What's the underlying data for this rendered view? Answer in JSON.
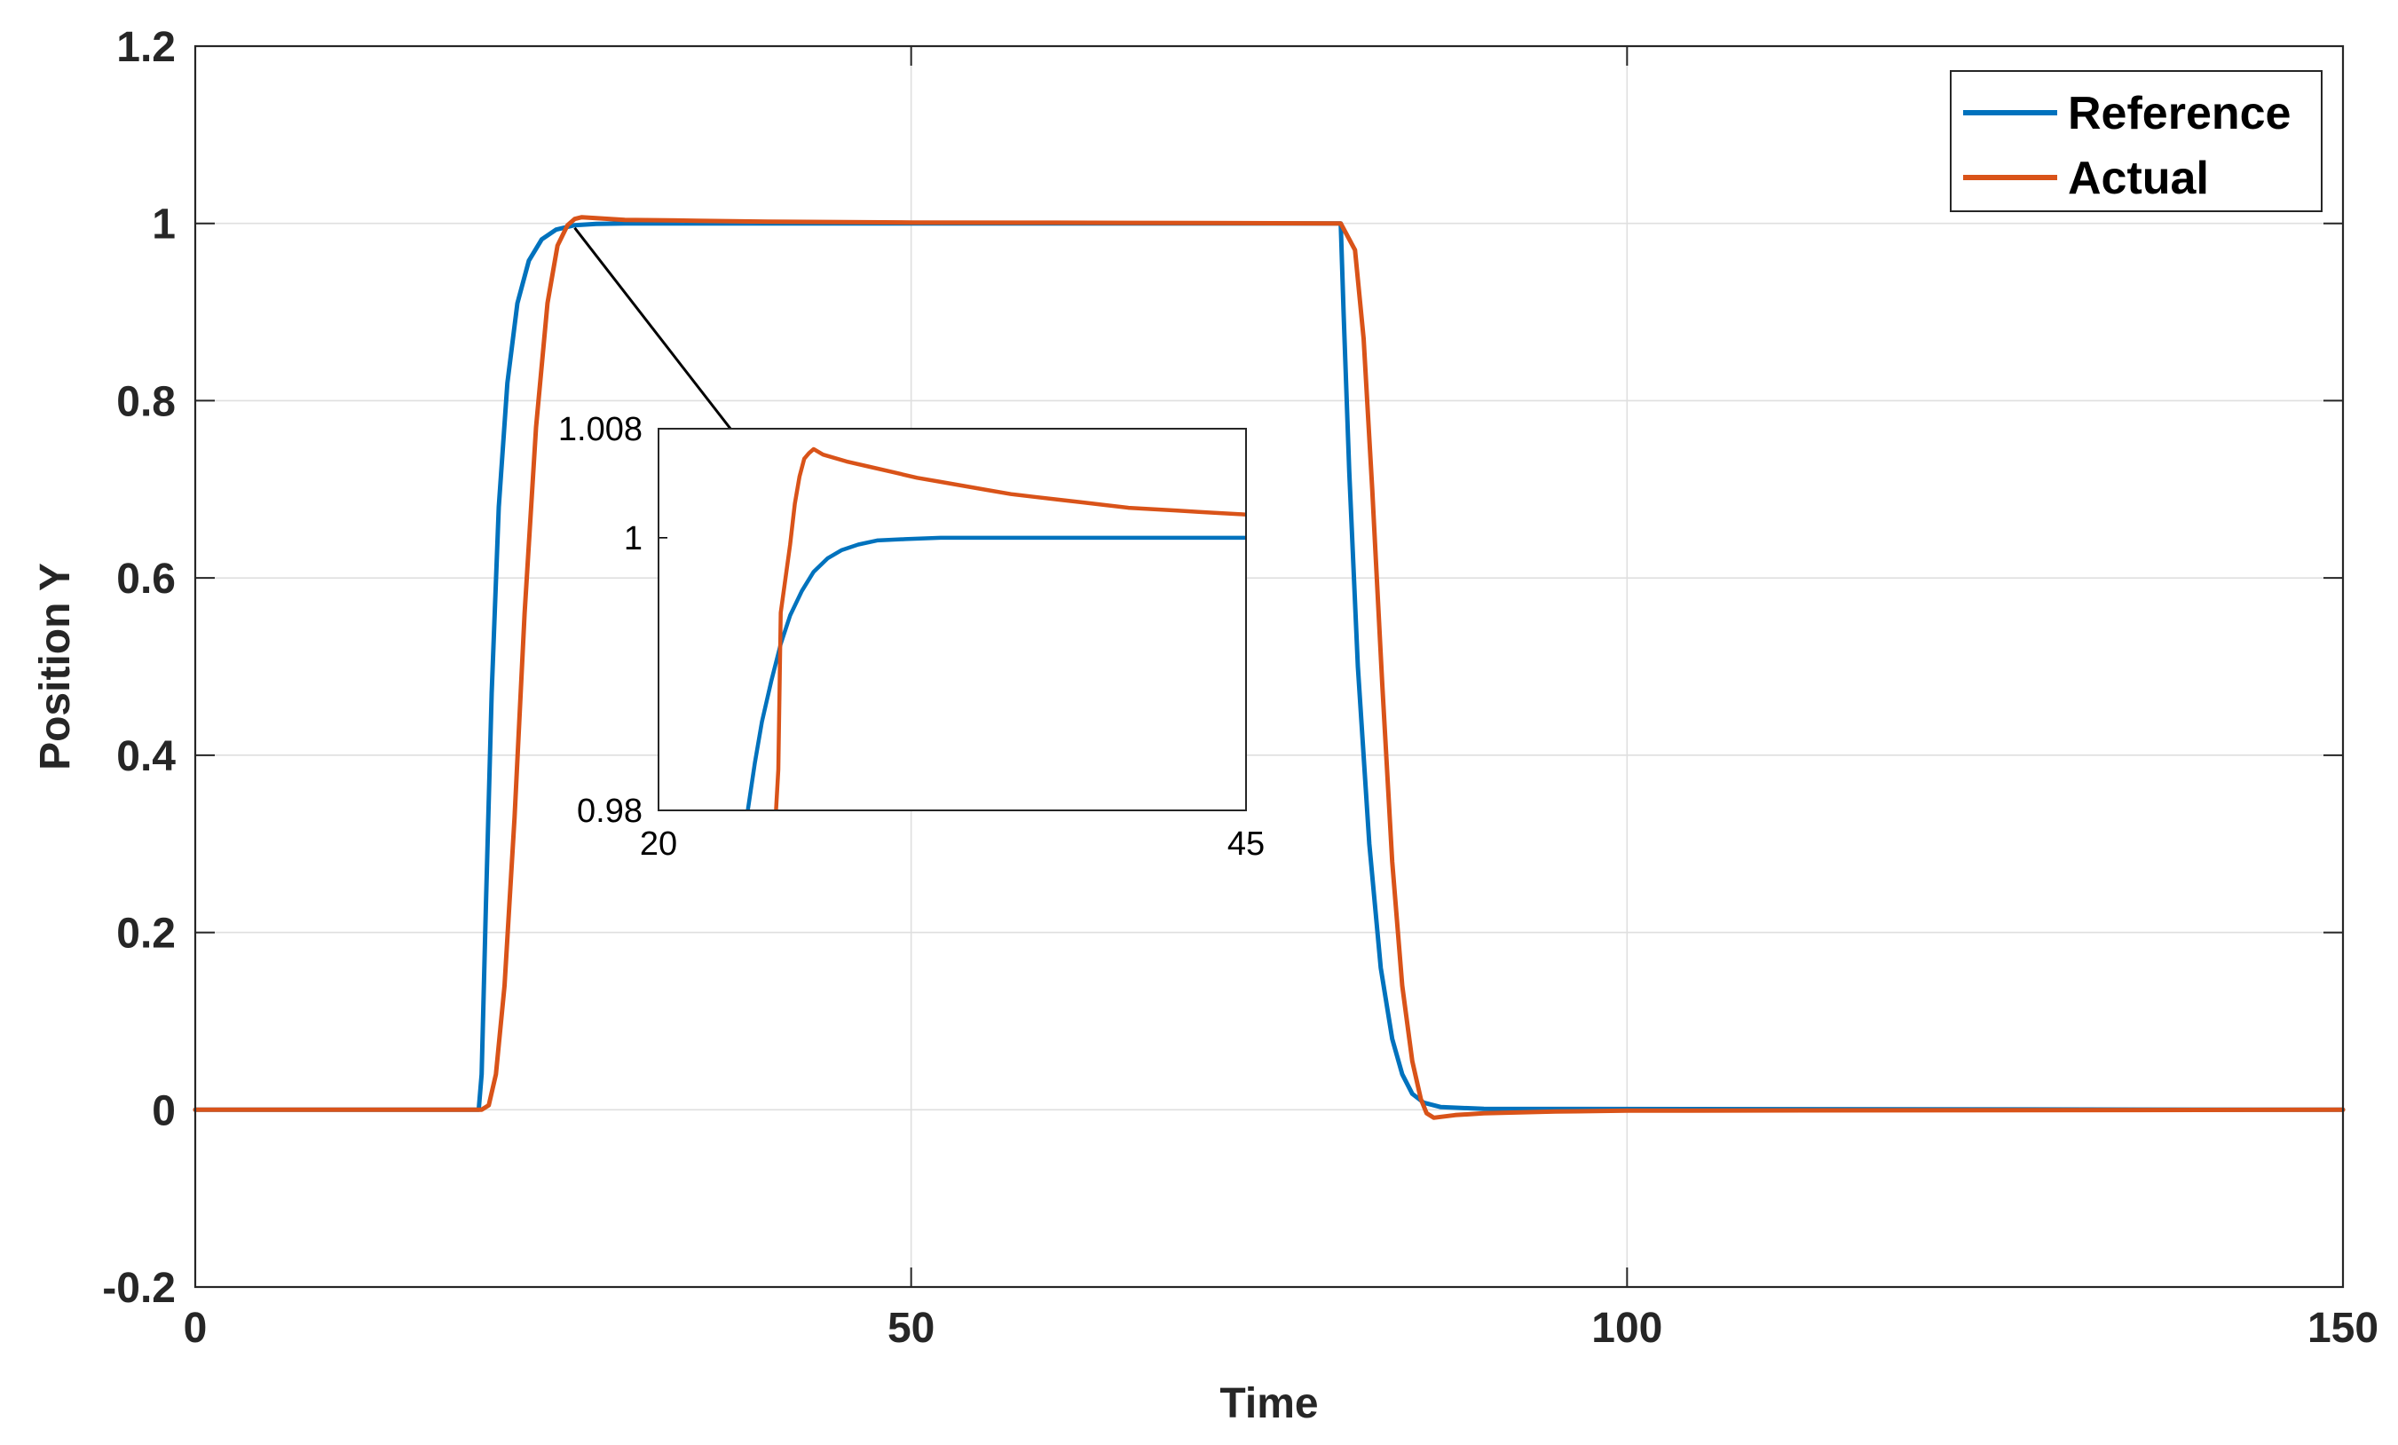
{
  "chart_data": [
    {
      "type": "line",
      "title": "",
      "xlabel": "Time",
      "ylabel": "Position Y",
      "xlim": [
        0,
        150
      ],
      "ylim": [
        -0.2,
        1.2
      ],
      "xticks": [
        0,
        50,
        100,
        150
      ],
      "xtick_labels": [
        "0",
        "50",
        "100",
        "150"
      ],
      "yticks": [
        -0.2,
        0,
        0.2,
        0.4,
        0.6,
        0.8,
        1,
        1.2
      ],
      "ytick_labels": [
        "-0.2",
        "0",
        "0.2",
        "0.4",
        "0.6",
        "0.8",
        "1",
        "1.2"
      ],
      "grid": true,
      "legend_position": "top-right",
      "series": [
        {
          "name": "Reference",
          "color": "#0072BD",
          "x": [
            0,
            19.8,
            20,
            20.3,
            20.7,
            21.2,
            21.8,
            22.5,
            23.3,
            24.2,
            25.2,
            26.5,
            28,
            30,
            40,
            60,
            80,
            80.2,
            80.6,
            81.2,
            82,
            82.8,
            83.6,
            84.3,
            85,
            85.8,
            87,
            90,
            150
          ],
          "y": [
            0,
            0,
            0.04,
            0.23,
            0.47,
            0.68,
            0.82,
            0.91,
            0.958,
            0.982,
            0.993,
            0.998,
            0.9995,
            1,
            1,
            1,
            1,
            0.9,
            0.72,
            0.5,
            0.3,
            0.16,
            0.08,
            0.04,
            0.018,
            0.008,
            0.003,
            0.001,
            0
          ]
        },
        {
          "name": "Actual",
          "color": "#D95319",
          "x": [
            0,
            20,
            20.5,
            21,
            21.6,
            22.3,
            23,
            23.8,
            24.6,
            25.3,
            26,
            26.5,
            27,
            28,
            30,
            35,
            40,
            50,
            60,
            70,
            80,
            81,
            81.6,
            82.2,
            82.9,
            83.6,
            84.3,
            85,
            85.6,
            86,
            86.5,
            88,
            90,
            95,
            100,
            150
          ],
          "y": [
            0,
            0,
            0.005,
            0.04,
            0.14,
            0.33,
            0.56,
            0.77,
            0.91,
            0.975,
            0.998,
            1.005,
            1.007,
            1.006,
            1.004,
            1.003,
            1.002,
            1.001,
            1.0008,
            1.0004,
            1,
            0.97,
            0.87,
            0.7,
            0.48,
            0.28,
            0.14,
            0.055,
            0.012,
            -0.004,
            -0.009,
            -0.006,
            -0.004,
            -0.002,
            -0.001,
            0
          ]
        }
      ],
      "annotations": [
        {
          "type": "arrow",
          "from": [
            26.5,
            0.995
          ],
          "to": [
            41,
            0.693
          ]
        }
      ]
    },
    {
      "type": "line",
      "title": "",
      "xlabel": "",
      "ylabel": "",
      "xlim": [
        20,
        45
      ],
      "ylim": [
        0.98,
        1.008
      ],
      "xticks": [
        20,
        45
      ],
      "xtick_labels": [
        "20",
        "45"
      ],
      "yticks": [
        0.98,
        1,
        1.008
      ],
      "ytick_labels": [
        "0.98",
        "1",
        "1.008"
      ],
      "grid": false,
      "series": [
        {
          "name": "Reference",
          "color": "#0072BD",
          "x": [
            23.8,
            24.1,
            24.4,
            24.8,
            25.2,
            25.6,
            26.1,
            26.6,
            27.2,
            27.8,
            28.5,
            29.3,
            30.5,
            32,
            35,
            40,
            45
          ],
          "y": [
            0.98,
            0.9835,
            0.9865,
            0.9895,
            0.9922,
            0.9943,
            0.9961,
            0.9975,
            0.9985,
            0.9991,
            0.9995,
            0.9998,
            0.9999,
            1,
            1,
            1,
            1
          ]
        },
        {
          "name": "Actual",
          "color": "#D95319",
          "x": [
            25,
            25.1,
            25.2,
            25.4,
            25.6,
            25.8,
            26,
            26.2,
            26.4,
            26.6,
            26.8,
            27,
            28,
            29,
            30,
            31,
            32,
            33,
            34,
            35,
            36,
            37,
            38,
            39,
            40,
            41,
            42,
            43,
            44,
            45
          ],
          "y": [
            0.98,
            0.983,
            0.9945,
            0.997,
            0.9995,
            1.0025,
            1.0045,
            1.0058,
            1.0062,
            1.0065,
            1.0063,
            1.0061,
            1.0056,
            1.0052,
            1.0048,
            1.0044,
            1.0041,
            1.0038,
            1.0035,
            1.0032,
            1.003,
            1.0028,
            1.0026,
            1.0024,
            1.0022,
            1.0021,
            1.002,
            1.0019,
            1.0018,
            1.0017
          ]
        }
      ]
    }
  ]
}
